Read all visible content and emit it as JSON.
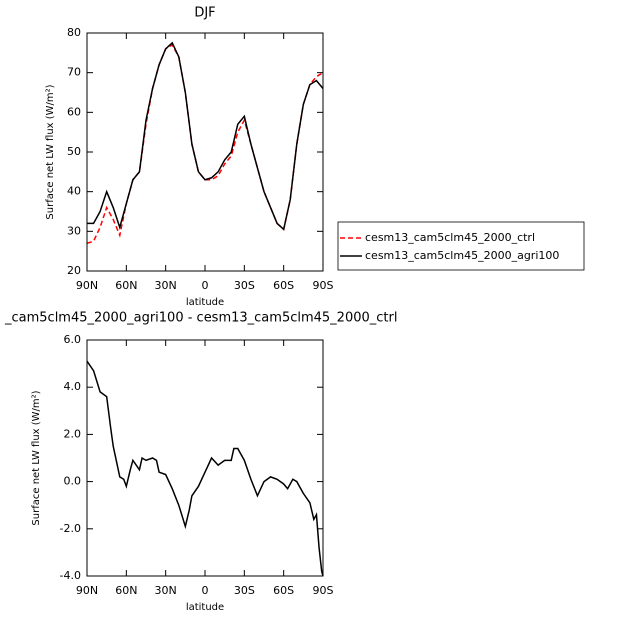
{
  "chart_data": [
    {
      "type": "line",
      "title": "DJF",
      "x_label": "latitude",
      "y_label": "Surface net LW flux (W/m²)",
      "x": [
        90,
        85,
        80,
        75,
        70,
        65,
        60,
        55,
        50,
        45,
        40,
        35,
        30,
        25,
        20,
        15,
        10,
        5,
        0,
        -5,
        -10,
        -15,
        -20,
        -25,
        -30,
        -35,
        -40,
        -45,
        -50,
        -55,
        -60,
        -65,
        -70,
        -75,
        -80,
        -85,
        -90
      ],
      "series": [
        {
          "name": "cesm13_cam5clm45_2000_ctrl",
          "color": "#ff0000",
          "dashed": true,
          "values": [
            27,
            27.5,
            31,
            36,
            33,
            29,
            37,
            43,
            45,
            57,
            66,
            72,
            76,
            77,
            74,
            65,
            52,
            45,
            43,
            43,
            44,
            47,
            49,
            55,
            58,
            52,
            46,
            40,
            36,
            32,
            30.5,
            38,
            52,
            62,
            67,
            69,
            70
          ]
        },
        {
          "name": "cesm13_cam5clm45_2000_agri100",
          "color": "#000000",
          "dashed": false,
          "values": [
            32,
            32,
            35,
            40,
            36,
            31,
            37,
            43,
            45,
            58,
            66,
            72,
            76,
            77.5,
            74,
            65,
            52,
            45,
            43,
            43.5,
            45,
            48,
            50,
            57,
            59,
            52,
            46,
            40,
            36,
            32,
            30.5,
            38,
            52,
            62,
            67,
            68,
            66
          ]
        }
      ],
      "xlim": [
        90,
        -90
      ],
      "xticks": [
        {
          "value": 90,
          "label": "90N"
        },
        {
          "value": 60,
          "label": "60N"
        },
        {
          "value": 30,
          "label": "30N"
        },
        0,
        {
          "value": -30,
          "label": "30S"
        },
        {
          "value": -60,
          "label": "60S"
        },
        {
          "value": -90,
          "label": "90S"
        }
      ],
      "ylim": [
        20,
        80
      ],
      "yticks": [
        20,
        30,
        40,
        50,
        60,
        70,
        80
      ],
      "legend": "right"
    },
    {
      "type": "line",
      "title": "_cam5clm45_2000_agri100 - cesm13_cam5clm45_2000_ctrl",
      "x_label": "latitude",
      "y_label": "Surface net LW flux (W/m²)",
      "x": [
        90,
        85,
        80,
        75,
        72,
        70,
        65,
        62,
        60,
        57,
        55,
        50,
        48,
        45,
        40,
        37,
        35,
        30,
        25,
        20,
        15,
        12,
        10,
        5,
        0,
        -5,
        -10,
        -15,
        -20,
        -22,
        -25,
        -30,
        -35,
        -40,
        -45,
        -50,
        -55,
        -60,
        -63,
        -67,
        -70,
        -75,
        -80,
        -83,
        -85,
        -87,
        -89,
        -90
      ],
      "series": [
        {
          "color": "#000000",
          "values": [
            5.1,
            4.7,
            3.8,
            3.6,
            2.3,
            1.5,
            0.2,
            0.1,
            -0.2,
            0.5,
            0.9,
            0.5,
            1.0,
            0.9,
            1.0,
            0.9,
            0.4,
            0.3,
            -0.3,
            -1.0,
            -1.9,
            -1.2,
            -0.6,
            -0.2,
            0.4,
            1.0,
            0.7,
            0.9,
            0.9,
            1.4,
            1.4,
            0.9,
            0.1,
            -0.6,
            0.0,
            0.2,
            0.1,
            -0.1,
            -0.3,
            0.1,
            0.0,
            -0.5,
            -0.9,
            -1.6,
            -1.4,
            -2.8,
            -3.8,
            -4.0
          ]
        }
      ],
      "xlim": [
        90,
        -90
      ],
      "xticks": [
        {
          "value": 90,
          "label": "90N"
        },
        {
          "value": 60,
          "label": "60N"
        },
        {
          "value": 30,
          "label": "30N"
        },
        0,
        {
          "value": -30,
          "label": "30S"
        },
        {
          "value": -60,
          "label": "60S"
        },
        {
          "value": -90,
          "label": "90S"
        }
      ],
      "ylim": [
        -4,
        6
      ],
      "yticks": [
        {
          "value": -4,
          "label": "-4.0"
        },
        {
          "value": -2,
          "label": "-2.0"
        },
        {
          "value": 0,
          "label": "0.0"
        },
        {
          "value": 2,
          "label": "2.0"
        },
        {
          "value": 4,
          "label": "4.0"
        },
        {
          "value": 6,
          "label": "6.0"
        }
      ]
    }
  ]
}
